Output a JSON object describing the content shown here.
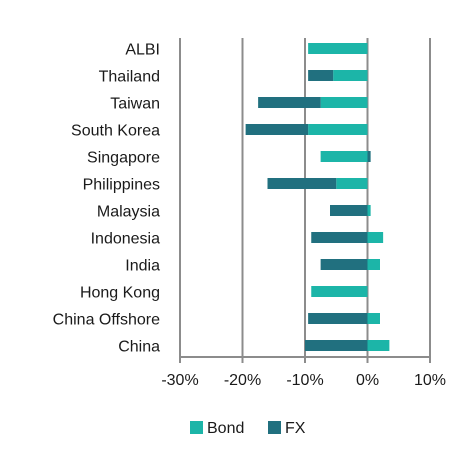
{
  "chart_data": {
    "type": "bar",
    "orientation": "horizontal",
    "stacked": true,
    "categories": [
      "ALBI",
      "Thailand",
      "Taiwan",
      "South Korea",
      "Singapore",
      "Philippines",
      "Malaysia",
      "Indonesia",
      "India",
      "Hong Kong",
      "China Offshore",
      "China"
    ],
    "series": [
      {
        "name": "Bond",
        "color": "#1cb5a8",
        "values": [
          -9.5,
          -5.5,
          -7.5,
          -9.5,
          -7.5,
          -5.0,
          0.5,
          2.5,
          2.0,
          -9.0,
          2.0,
          3.5
        ]
      },
      {
        "name": "FX",
        "color": "#21707f",
        "values": [
          0.0,
          -4.0,
          -10.0,
          -10.0,
          0.5,
          -11.0,
          -6.0,
          -9.0,
          -7.5,
          0.0,
          -9.5,
          -10.0
        ]
      }
    ],
    "xlim": [
      -30,
      10
    ],
    "xticks": [
      -30,
      -20,
      -10,
      0,
      10
    ],
    "xtick_labels": [
      "-30%",
      "-20%",
      "-10%",
      "0%",
      "10%"
    ],
    "grid": "vertical",
    "legend_position": "bottom-center"
  }
}
